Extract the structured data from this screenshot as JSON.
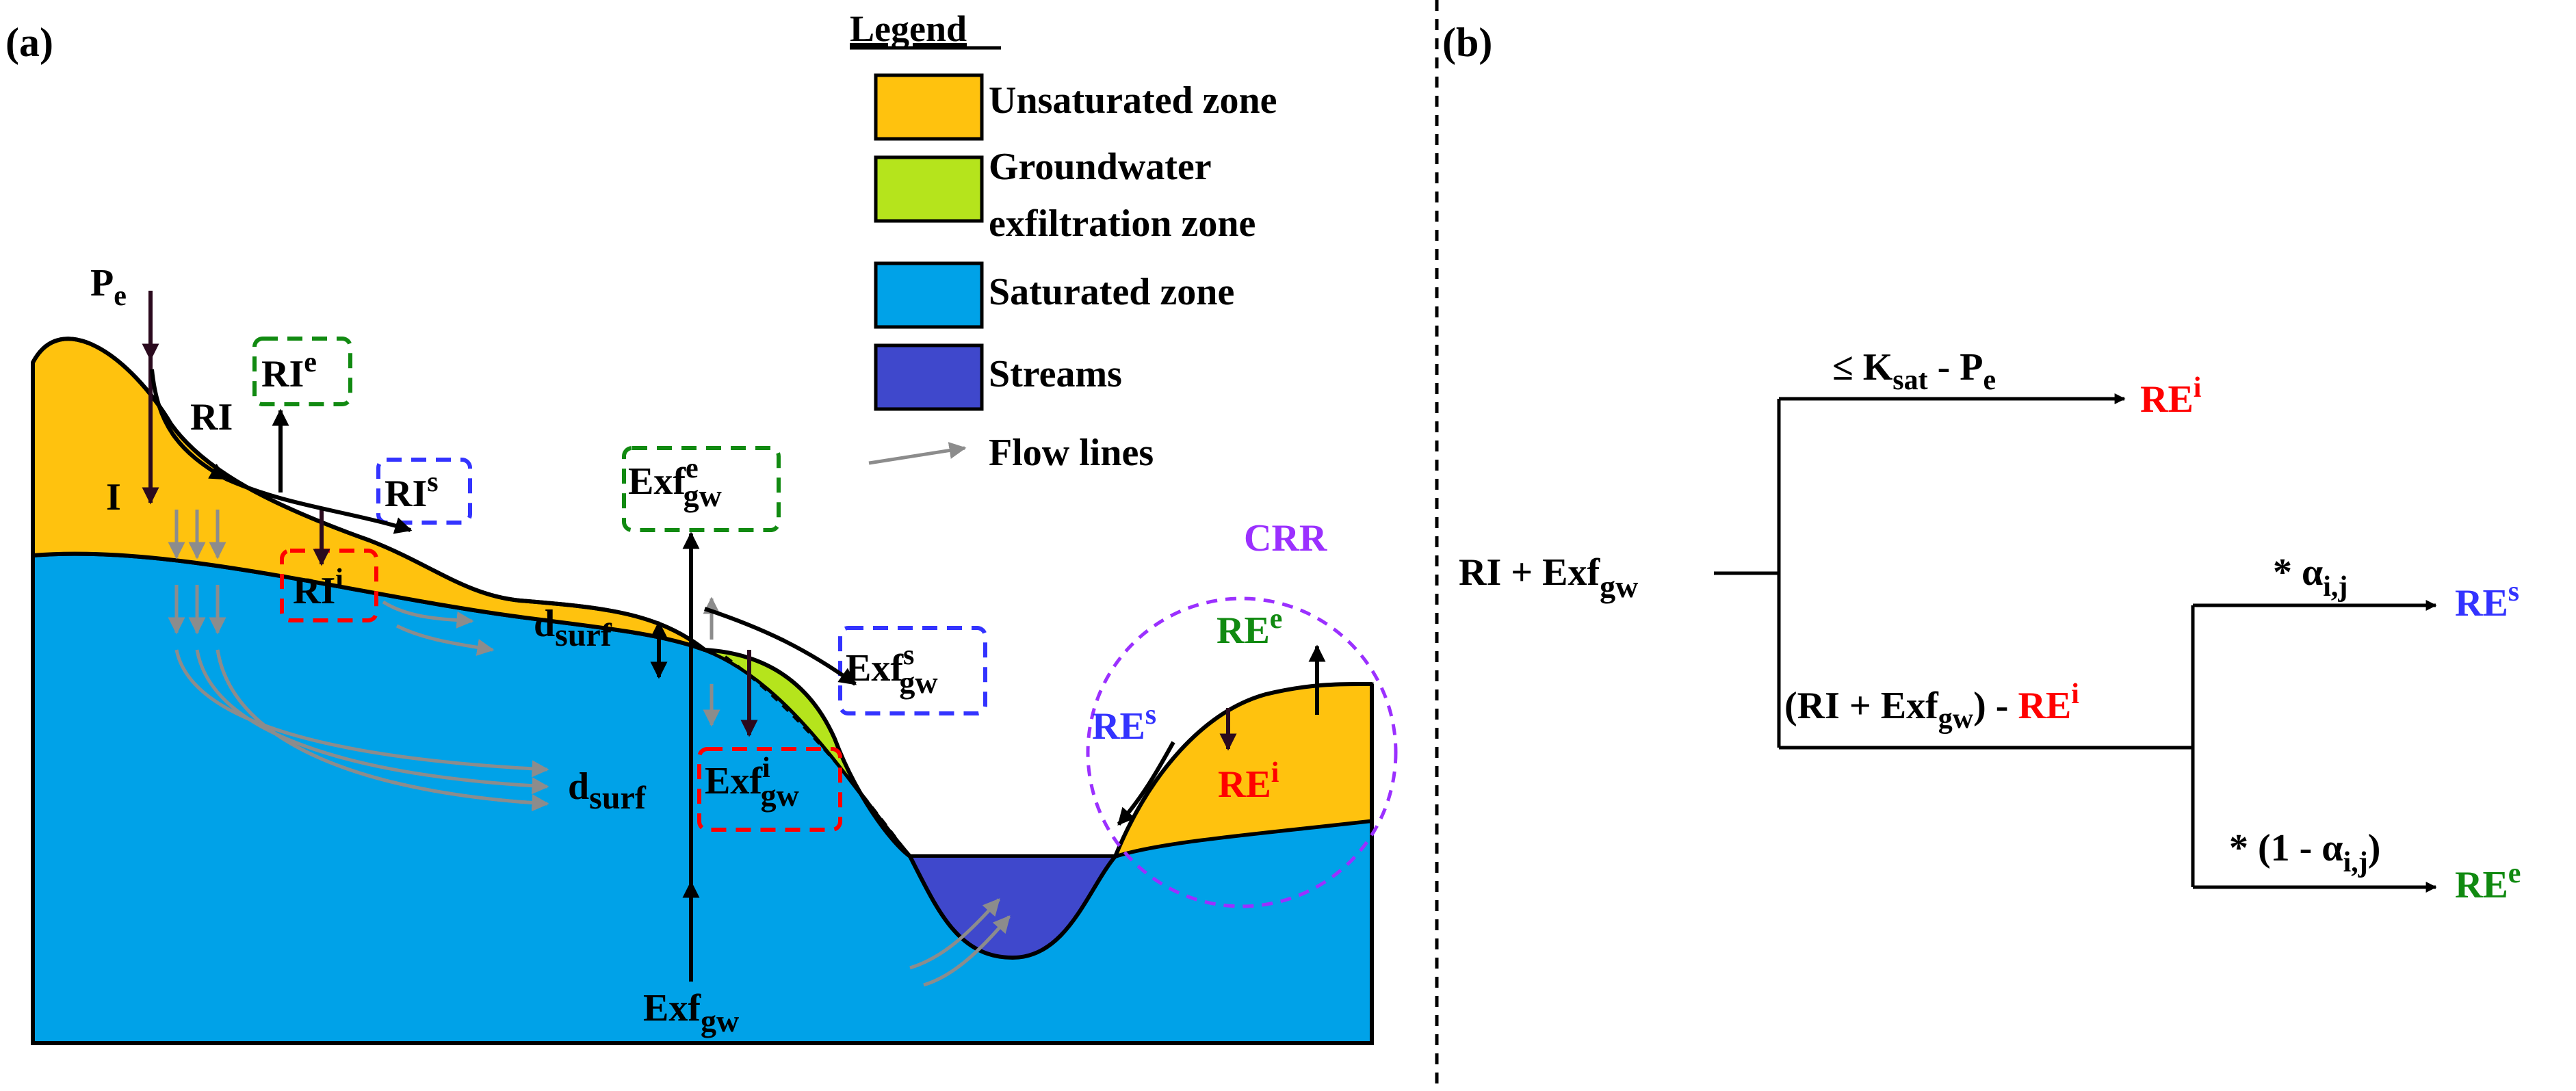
{
  "colors": {
    "unsaturated": "#FFC20E",
    "exfiltration": "#B5E41C",
    "saturated": "#00A2E8",
    "streams": "#3F48CC",
    "flowlines": "#8C8C8C",
    "black": "#000000",
    "arrow_dark": "#2B0A1E",
    "red": "#FF0000",
    "green": "#118A11",
    "blue": "#3333FF",
    "purple": "#9B30FF"
  },
  "panel_a": {
    "label": "(a)",
    "legend": {
      "title": "Legend",
      "items": [
        {
          "name": "unsaturated",
          "label_lines": [
            "Unsaturated zone"
          ]
        },
        {
          "name": "exfiltration",
          "label_lines": [
            "Groundwater",
            "exfiltration zone"
          ]
        },
        {
          "name": "saturated",
          "label_lines": [
            "Saturated zone"
          ]
        },
        {
          "name": "streams",
          "label_lines": [
            "Streams"
          ]
        }
      ],
      "flow_lines_label": "Flow lines"
    },
    "labels": {
      "pe": {
        "base": "P",
        "sub": "e"
      },
      "ri": "RI",
      "i": "I",
      "ri_e": {
        "base": "RI",
        "sup": "e"
      },
      "ri_s": {
        "base": "RI",
        "sup": "s"
      },
      "ri_i": {
        "base": "RI",
        "sup": "i"
      },
      "d_surf": {
        "base": "d",
        "sub": "surf"
      },
      "exf_e": {
        "base": "Exf",
        "sup": "e",
        "sub": "gw"
      },
      "exf_s": {
        "base": "Exf",
        "sup": "s",
        "sub": "gw"
      },
      "exf_i": {
        "base": "Exf",
        "sup": "i",
        "sub": "gw"
      },
      "exf_gw": {
        "base": "Exf",
        "sub": "gw"
      },
      "crr": "CRR",
      "re_e": {
        "base": "RE",
        "sup": "e"
      },
      "re_s": {
        "base": "RE",
        "sup": "s"
      },
      "re_i": {
        "base": "RE",
        "sup": "i"
      }
    }
  },
  "panel_b": {
    "label": "(b)",
    "root": {
      "base": "RI + Exf",
      "sub": "gw"
    },
    "top_condition": {
      "pre": "≤ K",
      "sub1": "sat",
      "mid": " - P",
      "sub2": "e"
    },
    "top_result": {
      "base": "RE",
      "sup": "i"
    },
    "remainder": {
      "pre": "(RI + Exf",
      "sub": "gw",
      "post": ") - ",
      "red_base": "RE",
      "red_sup": "i"
    },
    "upper_factor": {
      "pre": "* α",
      "sub": "i,j"
    },
    "upper_result": {
      "base": "RE",
      "sup": "s"
    },
    "lower_factor": {
      "pre": "* (1 - α",
      "sub": "i,j",
      "post": ")"
    },
    "lower_result": {
      "base": "RE",
      "sup": "e"
    }
  }
}
